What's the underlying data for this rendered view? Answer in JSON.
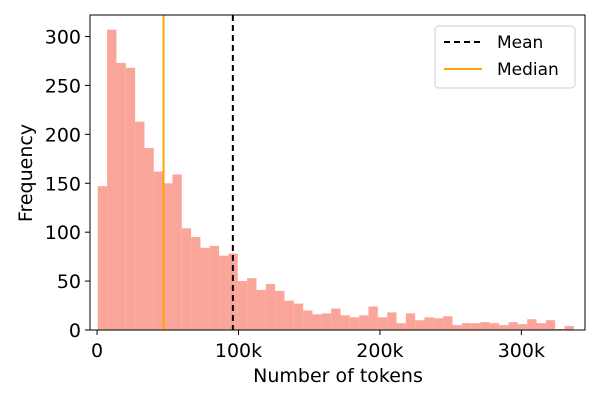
{
  "chart_data": {
    "type": "bar",
    "xlabel": "Number of tokens",
    "ylabel": "Frequency",
    "xlim": [
      -5000,
      345000
    ],
    "ylim": [
      0,
      322
    ],
    "xticks": [
      {
        "value": 0,
        "label": "0"
      },
      {
        "value": 100000,
        "label": "100k"
      },
      {
        "value": 200000,
        "label": "200k"
      },
      {
        "value": 300000,
        "label": "300k"
      }
    ],
    "yticks": [
      {
        "value": 0,
        "label": "0"
      },
      {
        "value": 50,
        "label": "50"
      },
      {
        "value": 100,
        "label": "100"
      },
      {
        "value": 150,
        "label": "150"
      },
      {
        "value": 200,
        "label": "200"
      },
      {
        "value": 250,
        "label": "250"
      },
      {
        "value": 300,
        "label": "300"
      }
    ],
    "bin_width": 6600,
    "bins_start": 500,
    "values": [
      147,
      307,
      273,
      268,
      213,
      186,
      162,
      150,
      159,
      104,
      95,
      84,
      86,
      76,
      78,
      50,
      53,
      41,
      47,
      40,
      30,
      27,
      20,
      16,
      17,
      22,
      15,
      13,
      15,
      24,
      13,
      18,
      7,
      17,
      10,
      13,
      12,
      14,
      5,
      7,
      7,
      8,
      7,
      5,
      8,
      6,
      11,
      7,
      10,
      1,
      4
    ],
    "bar_color": "#f9a59a",
    "mean": 96000,
    "median": 47000,
    "mean_color": "#000000",
    "median_color": "#ffa500",
    "legend": {
      "position": "top-right",
      "entries": [
        {
          "label": "Mean",
          "style": "dashed",
          "color": "#000000"
        },
        {
          "label": "Median",
          "style": "solid",
          "color": "#ffa500"
        }
      ]
    },
    "grid": false
  }
}
